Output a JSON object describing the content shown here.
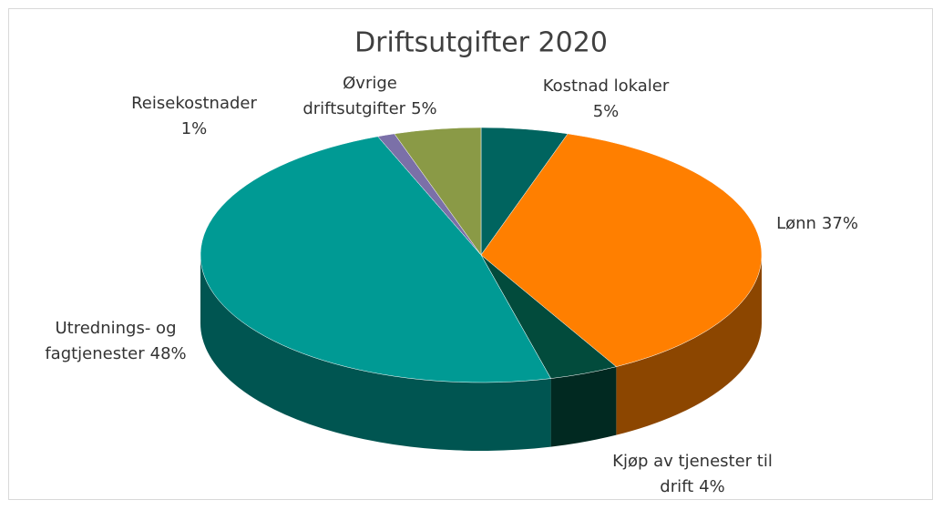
{
  "chart_data": {
    "type": "pie3d",
    "title": "Driftsutgifter 2020",
    "categories": [
      "Kostnad lokaler",
      "Lønn",
      "Kjøp av tjenester til drift",
      "Utrednings- og fagtjenester",
      "Reisekostnader",
      "Øvrige driftsutgifter"
    ],
    "values": [
      5,
      37,
      4,
      48,
      1,
      5
    ],
    "value_labels": [
      "5%",
      "37%",
      "4%",
      "48%",
      "1%",
      "5%"
    ],
    "colors": [
      "#00645f",
      "#ff7f00",
      "#024b3c",
      "#009a94",
      "#7b70a8",
      "#8a9a46"
    ]
  }
}
